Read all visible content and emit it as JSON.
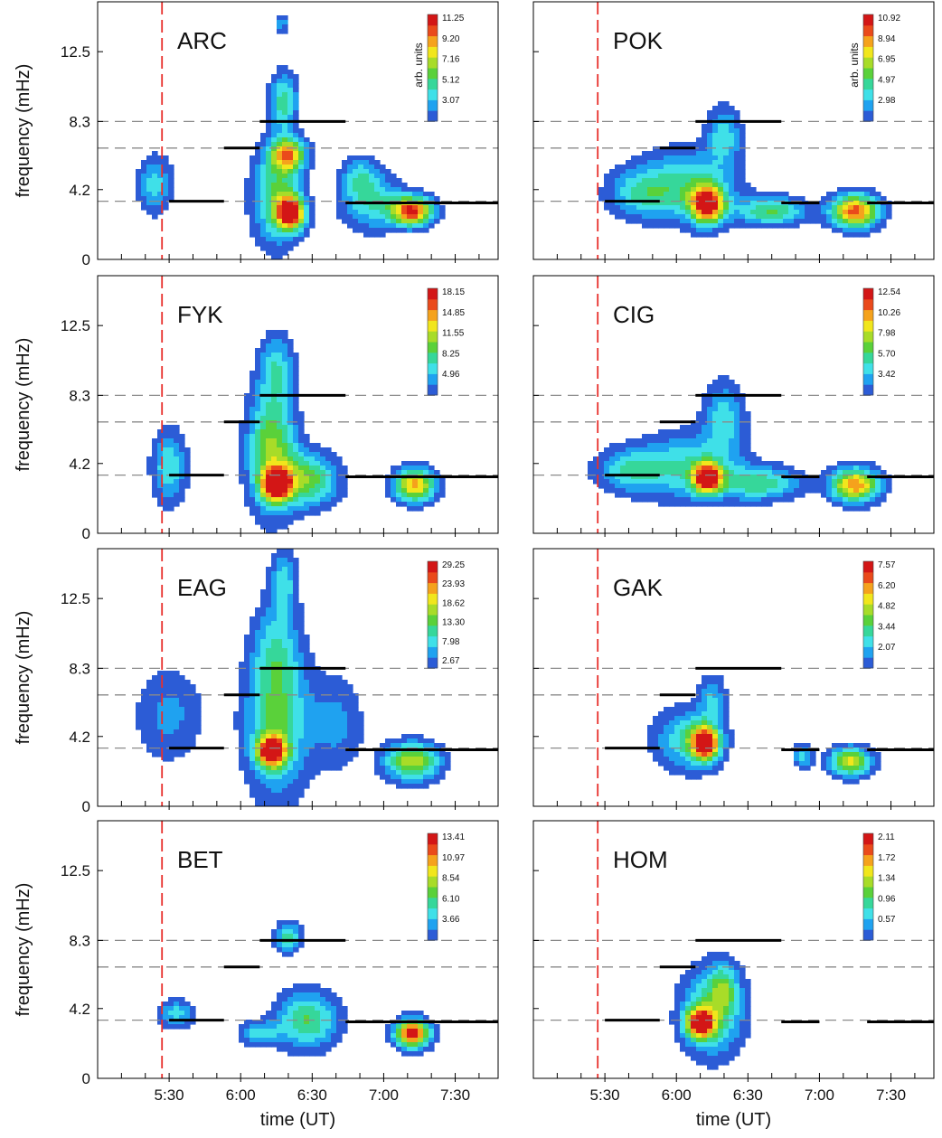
{
  "chart_data": {
    "type": "heatmap",
    "description_type": "contour",
    "xlabel": "time  (UT)",
    "ylabel": "frequency  (mHz)",
    "x_ticks": [
      "5:30",
      "6:00",
      "6:30",
      "7:00",
      "7:30"
    ],
    "y_ticks": [
      "0",
      "4.2",
      "8.3",
      "12.5"
    ],
    "ylim": [
      0,
      15.5
    ],
    "xlim": [
      "5:00",
      "7:48"
    ],
    "event_time": "5:27",
    "reference_frequencies": [
      3.5,
      6.7,
      8.3
    ],
    "colorbar_unit": "arb. units",
    "colors": {
      "event_line": "#e8302c",
      "ref_line": "#8a8a8a",
      "segments": "#000000",
      "colormap": [
        "#2c5cd6",
        "#1fa2f0",
        "#3fe0e8",
        "#36d79a",
        "#5ad13a",
        "#a8dc28",
        "#f1e61c",
        "#f5a21c",
        "#ea4a1b",
        "#d31616"
      ]
    },
    "panels": [
      {
        "station": "ARC",
        "colorbar_ticks": [
          "11.25",
          "9.20",
          "7.16",
          "5.12",
          "3.07"
        ],
        "max": 11.25,
        "blobs": [
          {
            "t": "5:24",
            "f": 4.5,
            "st": 5,
            "sf": 1.2,
            "a": 0.3
          },
          {
            "t": "6:21",
            "f": 2.8,
            "st": 4,
            "sf": 0.7,
            "a": 0.95
          },
          {
            "t": "6:20",
            "f": 6.3,
            "st": 5,
            "sf": 0.7,
            "a": 0.7
          },
          {
            "t": "6:15",
            "f": 3.8,
            "st": 7,
            "sf": 2.0,
            "a": 0.45
          },
          {
            "t": "6:18",
            "f": 9.5,
            "st": 4,
            "sf": 1.2,
            "a": 0.4
          },
          {
            "t": "6:17",
            "f": 14.2,
            "st": 2,
            "sf": 0.4,
            "a": 0.25
          },
          {
            "t": "7:12",
            "f": 2.9,
            "st": 6,
            "sf": 0.6,
            "a": 0.9
          },
          {
            "t": "6:55",
            "f": 3.5,
            "st": 9,
            "sf": 1.2,
            "a": 0.35
          },
          {
            "t": "6:50",
            "f": 5.0,
            "st": 5,
            "sf": 0.8,
            "a": 0.25
          }
        ],
        "segments": [
          {
            "t0": "5:30",
            "t1": "5:53",
            "f": 3.5
          },
          {
            "t0": "5:53",
            "t1": "6:08",
            "f": 6.7
          },
          {
            "t0": "6:08",
            "t1": "6:44",
            "f": 8.3
          },
          {
            "t0": "6:44",
            "t1": "7:48",
            "f": 3.4
          }
        ]
      },
      {
        "station": "POK",
        "colorbar_ticks": [
          "10.92",
          "8.94",
          "6.95",
          "4.97",
          "2.98"
        ],
        "max": 10.92,
        "blobs": [
          {
            "t": "6:13",
            "f": 3.3,
            "st": 5,
            "sf": 0.8,
            "a": 0.9
          },
          {
            "t": "6:05",
            "f": 4.5,
            "st": 14,
            "sf": 1.5,
            "a": 0.35
          },
          {
            "t": "6:40",
            "f": 2.9,
            "st": 10,
            "sf": 0.6,
            "a": 0.45
          },
          {
            "t": "7:15",
            "f": 2.9,
            "st": 7,
            "sf": 0.7,
            "a": 0.85
          },
          {
            "t": "6:20",
            "f": 7.5,
            "st": 5,
            "sf": 1.2,
            "a": 0.3
          },
          {
            "t": "5:45",
            "f": 4.0,
            "st": 10,
            "sf": 1.0,
            "a": 0.3
          }
        ],
        "segments": [
          {
            "t0": "5:30",
            "t1": "5:53",
            "f": 3.5
          },
          {
            "t0": "5:53",
            "t1": "6:08",
            "f": 6.7
          },
          {
            "t0": "6:08",
            "t1": "6:44",
            "f": 8.3
          },
          {
            "t0": "6:44",
            "t1": "7:00",
            "f": 3.4
          },
          {
            "t0": "7:20",
            "t1": "7:48",
            "f": 3.4
          }
        ]
      },
      {
        "station": "FYK",
        "colorbar_ticks": [
          "18.15",
          "14.85",
          "11.55",
          "8.25",
          "4.96"
        ],
        "max": 18.15,
        "blobs": [
          {
            "t": "6:15",
            "f": 2.9,
            "st": 4,
            "sf": 0.6,
            "a": 0.95
          },
          {
            "t": "6:13",
            "f": 5.0,
            "st": 7,
            "sf": 2.5,
            "a": 0.55
          },
          {
            "t": "6:28",
            "f": 3.2,
            "st": 9,
            "sf": 1.1,
            "a": 0.5
          },
          {
            "t": "6:15",
            "f": 10.0,
            "st": 5,
            "sf": 1.4,
            "a": 0.3
          },
          {
            "t": "7:13",
            "f": 2.9,
            "st": 6,
            "sf": 0.7,
            "a": 0.75
          },
          {
            "t": "5:30",
            "f": 4.0,
            "st": 5,
            "sf": 1.5,
            "a": 0.35
          }
        ],
        "segments": [
          {
            "t0": "5:30",
            "t1": "5:53",
            "f": 3.5
          },
          {
            "t0": "5:53",
            "t1": "6:08",
            "f": 6.7
          },
          {
            "t0": "6:08",
            "t1": "6:44",
            "f": 8.3
          },
          {
            "t0": "6:44",
            "t1": "7:48",
            "f": 3.4
          }
        ]
      },
      {
        "station": "CIG",
        "colorbar_ticks": [
          "12.54",
          "10.26",
          "7.98",
          "5.70",
          "3.42"
        ],
        "max": 12.54,
        "blobs": [
          {
            "t": "6:13",
            "f": 3.3,
            "st": 4,
            "sf": 0.6,
            "a": 0.95
          },
          {
            "t": "6:05",
            "f": 4.0,
            "st": 15,
            "sf": 1.4,
            "a": 0.35
          },
          {
            "t": "6:35",
            "f": 3.0,
            "st": 12,
            "sf": 0.7,
            "a": 0.4
          },
          {
            "t": "7:15",
            "f": 2.9,
            "st": 7,
            "sf": 0.7,
            "a": 0.8
          },
          {
            "t": "6:20",
            "f": 7.0,
            "st": 6,
            "sf": 1.5,
            "a": 0.3
          },
          {
            "t": "5:40",
            "f": 3.8,
            "st": 10,
            "sf": 0.9,
            "a": 0.3
          }
        ],
        "segments": [
          {
            "t0": "5:30",
            "t1": "5:53",
            "f": 3.5
          },
          {
            "t0": "5:53",
            "t1": "6:08",
            "f": 6.7
          },
          {
            "t0": "6:08",
            "t1": "6:44",
            "f": 8.3
          },
          {
            "t0": "6:44",
            "t1": "7:00",
            "f": 3.4
          },
          {
            "t0": "7:20",
            "t1": "7:48",
            "f": 3.4
          }
        ]
      },
      {
        "station": "EAG",
        "colorbar_ticks": [
          "29.25",
          "23.93",
          "18.62",
          "13.30",
          "7.98",
          "2.67"
        ],
        "max": 29.25,
        "blobs": [
          {
            "t": "6:13",
            "f": 3.3,
            "st": 4,
            "sf": 0.6,
            "a": 0.95
          },
          {
            "t": "6:15",
            "f": 5.0,
            "st": 9,
            "sf": 3.0,
            "a": 0.45
          },
          {
            "t": "6:18",
            "f": 13.5,
            "st": 4,
            "sf": 1.3,
            "a": 0.3
          },
          {
            "t": "6:15",
            "f": 9.5,
            "st": 7,
            "sf": 2.0,
            "a": 0.25
          },
          {
            "t": "7:12",
            "f": 2.7,
            "st": 8,
            "sf": 0.8,
            "a": 0.6
          },
          {
            "t": "5:30",
            "f": 5.5,
            "st": 10,
            "sf": 2.0,
            "a": 0.2
          },
          {
            "t": "6:40",
            "f": 5.0,
            "st": 8,
            "sf": 2.0,
            "a": 0.2
          }
        ],
        "segments": [
          {
            "t0": "5:30",
            "t1": "5:53",
            "f": 3.5
          },
          {
            "t0": "5:53",
            "t1": "6:08",
            "f": 6.7
          },
          {
            "t0": "6:08",
            "t1": "6:44",
            "f": 8.3
          },
          {
            "t0": "6:44",
            "t1": "7:48",
            "f": 3.4
          }
        ]
      },
      {
        "station": "GAK",
        "colorbar_ticks": [
          "7.57",
          "6.20",
          "4.82",
          "3.44",
          "2.07"
        ],
        "max": 7.57,
        "blobs": [
          {
            "t": "6:12",
            "f": 3.8,
            "st": 4,
            "sf": 0.7,
            "a": 0.95
          },
          {
            "t": "6:05",
            "f": 4.0,
            "st": 10,
            "sf": 1.3,
            "a": 0.35
          },
          {
            "t": "6:15",
            "f": 6.5,
            "st": 4,
            "sf": 1.0,
            "a": 0.25
          },
          {
            "t": "7:13",
            "f": 2.7,
            "st": 6,
            "sf": 0.6,
            "a": 0.65
          },
          {
            "t": "6:53",
            "f": 3.0,
            "st": 3,
            "sf": 0.5,
            "a": 0.3
          }
        ],
        "segments": [
          {
            "t0": "5:30",
            "t1": "5:53",
            "f": 3.5
          },
          {
            "t0": "5:53",
            "t1": "6:08",
            "f": 6.7
          },
          {
            "t0": "6:08",
            "t1": "6:44",
            "f": 8.3
          },
          {
            "t0": "6:44",
            "t1": "7:00",
            "f": 3.4
          },
          {
            "t0": "7:20",
            "t1": "7:48",
            "f": 3.4
          }
        ]
      },
      {
        "station": "BET",
        "colorbar_ticks": [
          "13.41",
          "10.97",
          "8.54",
          "6.10",
          "3.66"
        ],
        "max": 13.41,
        "blobs": [
          {
            "t": "7:12",
            "f": 2.7,
            "st": 5,
            "sf": 0.6,
            "a": 0.95
          },
          {
            "t": "6:28",
            "f": 3.5,
            "st": 9,
            "sf": 1.2,
            "a": 0.45
          },
          {
            "t": "6:20",
            "f": 8.5,
            "st": 4,
            "sf": 0.6,
            "a": 0.4
          },
          {
            "t": "5:33",
            "f": 3.9,
            "st": 5,
            "sf": 0.6,
            "a": 0.3
          },
          {
            "t": "6:08",
            "f": 2.7,
            "st": 6,
            "sf": 0.5,
            "a": 0.3
          }
        ],
        "segments": [
          {
            "t0": "5:30",
            "t1": "5:53",
            "f": 3.5
          },
          {
            "t0": "5:53",
            "t1": "6:08",
            "f": 6.7
          },
          {
            "t0": "6:08",
            "t1": "6:44",
            "f": 8.3
          },
          {
            "t0": "6:44",
            "t1": "7:48",
            "f": 3.4
          }
        ]
      },
      {
        "station": "HOM",
        "colorbar_ticks": [
          "2.11",
          "1.72",
          "1.34",
          "0.96",
          "0.57"
        ],
        "max": 2.11,
        "blobs": [
          {
            "t": "6:10",
            "f": 3.3,
            "st": 4,
            "sf": 0.6,
            "a": 0.9
          },
          {
            "t": "6:15",
            "f": 4.0,
            "st": 9,
            "sf": 1.8,
            "a": 0.45
          },
          {
            "t": "6:20",
            "f": 5.5,
            "st": 4,
            "sf": 1.0,
            "a": 0.3
          }
        ],
        "segments": [
          {
            "t0": "5:30",
            "t1": "5:53",
            "f": 3.5
          },
          {
            "t0": "5:53",
            "t1": "6:08",
            "f": 6.7
          },
          {
            "t0": "6:08",
            "t1": "6:44",
            "f": 8.3
          },
          {
            "t0": "6:44",
            "t1": "7:00",
            "f": 3.4
          },
          {
            "t0": "7:20",
            "t1": "7:48",
            "f": 3.4
          }
        ]
      }
    ]
  }
}
